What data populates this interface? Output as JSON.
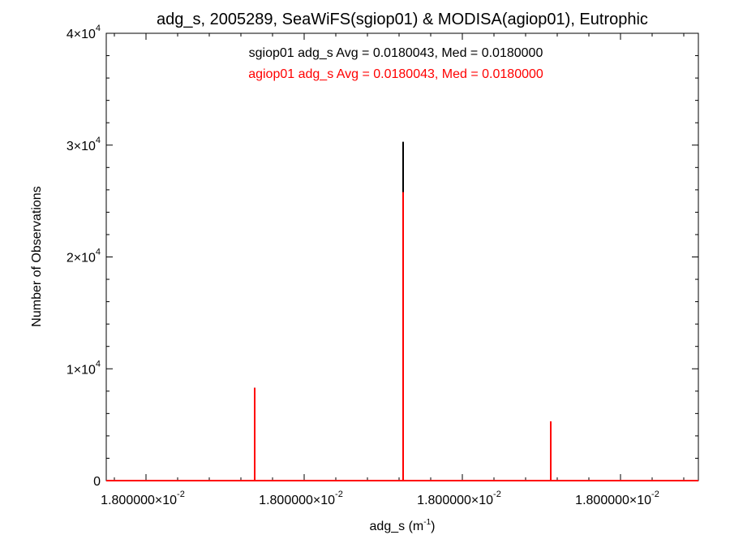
{
  "chart_data": {
    "type": "histogram",
    "title": "adg_s, 2005289, SeaWiFS(sgiop01) & MODISA(agiop01), Eutrophic",
    "xlabel": "adg_s (m",
    "xlabel_sup": "-1",
    "xlabel_close": ")",
    "ylabel": "Number of Observations",
    "ylim": [
      0,
      40000
    ],
    "y_ticks": [
      {
        "value": 0,
        "label": "0"
      },
      {
        "value": 10000,
        "mantissa": "1×10",
        "exp": "4"
      },
      {
        "value": 20000,
        "mantissa": "2×10",
        "exp": "4"
      },
      {
        "value": 30000,
        "mantissa": "3×10",
        "exp": "4"
      },
      {
        "value": 40000,
        "mantissa": "4×10",
        "exp": "4"
      }
    ],
    "x_ticks": [
      {
        "mantissa": "1.800000×10",
        "exp": "-2"
      },
      {
        "mantissa": "1.800000×10",
        "exp": "-2"
      },
      {
        "mantissa": "1.800000×10",
        "exp": "-2"
      },
      {
        "mantissa": "1.800000×10",
        "exp": "-2"
      }
    ],
    "annotations": [
      {
        "text": "sgiop01 adg_s Avg = 0.0180043, Med = 0.0180000",
        "color": "#000000"
      },
      {
        "text": "agiop01 adg_s Avg = 0.0180043, Med = 0.0180000",
        "color": "#ff0000"
      }
    ],
    "series": [
      {
        "name": "sgiop01",
        "color": "#000000",
        "spikes": [
          {
            "bin": 1,
            "count": 8300
          },
          {
            "bin": 2,
            "count": 30300
          },
          {
            "bin": 3,
            "count": 5300
          }
        ]
      },
      {
        "name": "agiop01",
        "color": "#ff0000",
        "spikes": [
          {
            "bin": 1,
            "count": 8300
          },
          {
            "bin": 2,
            "count": 25800
          },
          {
            "bin": 3,
            "count": 5300
          }
        ]
      }
    ]
  }
}
